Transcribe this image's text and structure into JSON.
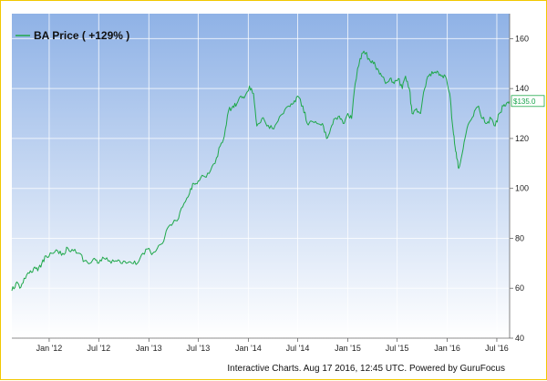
{
  "chart_data": {
    "type": "line",
    "legend": "BA Price ( +129% )",
    "series_color": "#1fa84a",
    "last_value": 135.0,
    "last_value_label": "$135.0",
    "y_ticks": [
      "40",
      "60",
      "80",
      "100",
      "120",
      "140",
      "160"
    ],
    "ylim": [
      40,
      170
    ],
    "x_ticks": [
      "Jan '12",
      "Jul '12",
      "Jan '13",
      "Jul '13",
      "Jan '14",
      "Jul '14",
      "Jan '15",
      "Jul '15",
      "Jan '16",
      "Jul '16"
    ],
    "x_tick_dates": [
      "2012-01-01",
      "2012-07-01",
      "2013-01-01",
      "2013-07-01",
      "2014-01-01",
      "2014-07-01",
      "2015-01-01",
      "2015-07-01",
      "2016-01-01",
      "2016-07-01"
    ],
    "x_range": [
      "2011-08-17",
      "2016-08-17"
    ],
    "grid": true,
    "series": [
      {
        "name": "BA Price",
        "points": [
          [
            "2011-08-17",
            59
          ],
          [
            "2011-09-01",
            62
          ],
          [
            "2011-09-15",
            60
          ],
          [
            "2011-10-01",
            64
          ],
          [
            "2011-10-20",
            66
          ],
          [
            "2011-11-05",
            68
          ],
          [
            "2011-11-20",
            67
          ],
          [
            "2011-12-05",
            70
          ],
          [
            "2011-12-20",
            73
          ],
          [
            "2012-01-10",
            74
          ],
          [
            "2012-02-01",
            75
          ],
          [
            "2012-02-20",
            74
          ],
          [
            "2012-03-10",
            76
          ],
          [
            "2012-03-30",
            75
          ],
          [
            "2012-04-20",
            74
          ],
          [
            "2012-05-10",
            71
          ],
          [
            "2012-05-30",
            70
          ],
          [
            "2012-06-15",
            72
          ],
          [
            "2012-07-01",
            70
          ],
          [
            "2012-07-20",
            72
          ],
          [
            "2012-08-10",
            71
          ],
          [
            "2012-09-01",
            71
          ],
          [
            "2012-09-20",
            70
          ],
          [
            "2012-10-10",
            70
          ],
          [
            "2012-10-30",
            70
          ],
          [
            "2012-11-20",
            70
          ],
          [
            "2012-12-10",
            74
          ],
          [
            "2013-01-01",
            76
          ],
          [
            "2013-01-15",
            74
          ],
          [
            "2013-02-01",
            76
          ],
          [
            "2013-02-20",
            78
          ],
          [
            "2013-03-10",
            84
          ],
          [
            "2013-03-30",
            86
          ],
          [
            "2013-04-20",
            88
          ],
          [
            "2013-05-10",
            94
          ],
          [
            "2013-05-30",
            98
          ],
          [
            "2013-06-15",
            102
          ],
          [
            "2013-07-01",
            103
          ],
          [
            "2013-07-20",
            105
          ],
          [
            "2013-08-10",
            106
          ],
          [
            "2013-09-01",
            110
          ],
          [
            "2013-09-20",
            117
          ],
          [
            "2013-10-05",
            121
          ],
          [
            "2013-10-20",
            131
          ],
          [
            "2013-11-05",
            133
          ],
          [
            "2013-11-20",
            134
          ],
          [
            "2013-12-05",
            137
          ],
          [
            "2013-12-20",
            137
          ],
          [
            "2014-01-05",
            141
          ],
          [
            "2014-01-20",
            138
          ],
          [
            "2014-02-01",
            125
          ],
          [
            "2014-02-20",
            128
          ],
          [
            "2014-03-10",
            125
          ],
          [
            "2014-03-30",
            124
          ],
          [
            "2014-04-20",
            127
          ],
          [
            "2014-05-10",
            130
          ],
          [
            "2014-05-30",
            133
          ],
          [
            "2014-06-15",
            134
          ],
          [
            "2014-07-01",
            137
          ],
          [
            "2014-07-20",
            133
          ],
          [
            "2014-08-05",
            126
          ],
          [
            "2014-08-20",
            127
          ],
          [
            "2014-09-10",
            126
          ],
          [
            "2014-09-30",
            126
          ],
          [
            "2014-10-15",
            120
          ],
          [
            "2014-10-30",
            124
          ],
          [
            "2014-11-15",
            128
          ],
          [
            "2014-12-01",
            129
          ],
          [
            "2014-12-15",
            126
          ],
          [
            "2015-01-01",
            130
          ],
          [
            "2015-01-15",
            128
          ],
          [
            "2015-01-28",
            142
          ],
          [
            "2015-02-15",
            152
          ],
          [
            "2015-03-01",
            155
          ],
          [
            "2015-03-20",
            152
          ],
          [
            "2015-04-05",
            150
          ],
          [
            "2015-04-20",
            148
          ],
          [
            "2015-05-05",
            145
          ],
          [
            "2015-05-20",
            142
          ],
          [
            "2015-06-05",
            144
          ],
          [
            "2015-06-20",
            142
          ],
          [
            "2015-07-05",
            144
          ],
          [
            "2015-07-20",
            140
          ],
          [
            "2015-08-01",
            145
          ],
          [
            "2015-08-15",
            140
          ],
          [
            "2015-08-25",
            130
          ],
          [
            "2015-09-10",
            132
          ],
          [
            "2015-09-25",
            130
          ],
          [
            "2015-10-10",
            140
          ],
          [
            "2015-10-25",
            145
          ],
          [
            "2015-11-10",
            146
          ],
          [
            "2015-11-25",
            147
          ],
          [
            "2015-12-10",
            145
          ],
          [
            "2015-12-25",
            145
          ],
          [
            "2016-01-10",
            138
          ],
          [
            "2016-01-20",
            126
          ],
          [
            "2016-01-28",
            118
          ],
          [
            "2016-02-05",
            112
          ],
          [
            "2016-02-12",
            108
          ],
          [
            "2016-02-25",
            114
          ],
          [
            "2016-03-10",
            122
          ],
          [
            "2016-03-25",
            127
          ],
          [
            "2016-04-10",
            131
          ],
          [
            "2016-04-25",
            133
          ],
          [
            "2016-05-10",
            128
          ],
          [
            "2016-05-25",
            126
          ],
          [
            "2016-06-10",
            128
          ],
          [
            "2016-06-25",
            125
          ],
          [
            "2016-07-10",
            130
          ],
          [
            "2016-07-25",
            133
          ],
          [
            "2016-08-05",
            134
          ],
          [
            "2016-08-17",
            135
          ]
        ]
      }
    ]
  },
  "footer": "Interactive Charts. Aug 17 2016, 12:45 UTC. Powered by GuruFocus"
}
